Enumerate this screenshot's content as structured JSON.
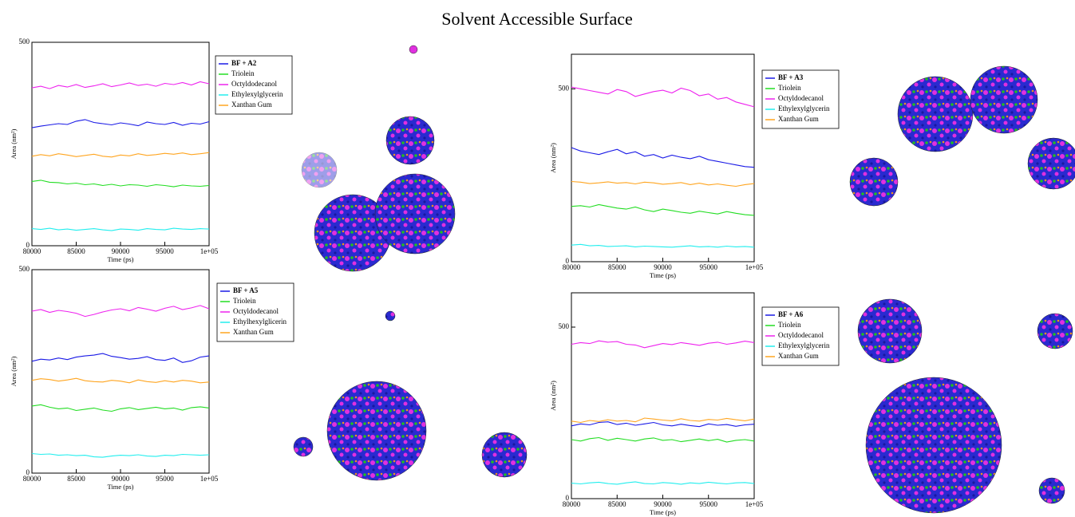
{
  "title": "Solvent Accessible Surface",
  "chart_data": [
    {
      "type": "line",
      "xlabel": "Time (ps)",
      "ylabel": "Area (nm²)",
      "x": [
        80000,
        81000,
        82000,
        83000,
        84000,
        85000,
        86000,
        87000,
        88000,
        89000,
        90000,
        91000,
        92000,
        93000,
        94000,
        95000,
        96000,
        97000,
        98000,
        99000,
        100000
      ],
      "xlim": [
        80000,
        100000
      ],
      "xticks": [
        80000,
        85000,
        90000,
        95000,
        {
          "value": 100000,
          "label": "1e+05"
        }
      ],
      "ylim": [
        0,
        500
      ],
      "yticks": [
        0,
        500
      ],
      "series": [
        {
          "name": "BF + A2",
          "color": "#1a1ae6",
          "values": [
            290,
            294,
            297,
            300,
            298,
            306,
            310,
            303,
            300,
            297,
            302,
            299,
            295,
            304,
            300,
            298,
            303,
            296,
            301,
            299,
            305
          ]
        },
        {
          "name": "Triolein",
          "color": "#22dd22",
          "values": [
            158,
            161,
            156,
            155,
            152,
            154,
            150,
            152,
            148,
            151,
            147,
            150,
            149,
            146,
            150,
            148,
            145,
            149,
            147,
            146,
            148
          ]
        },
        {
          "name": "Octyldodecanol",
          "color": "#ee22ee",
          "values": [
            388,
            392,
            386,
            394,
            390,
            396,
            389,
            393,
            398,
            391,
            395,
            400,
            394,
            397,
            392,
            399,
            396,
            401,
            395,
            403,
            398
          ]
        },
        {
          "name": "Ethylexylglycerin",
          "color": "#22eeee",
          "values": [
            42,
            40,
            43,
            39,
            41,
            38,
            40,
            42,
            39,
            37,
            41,
            40,
            38,
            42,
            40,
            39,
            43,
            41,
            40,
            42,
            41
          ]
        },
        {
          "name": "Xanthan Gum",
          "color": "#ffa520",
          "values": [
            220,
            224,
            221,
            226,
            223,
            219,
            222,
            225,
            220,
            218,
            223,
            221,
            226,
            222,
            224,
            227,
            225,
            228,
            224,
            226,
            229
          ]
        }
      ]
    },
    {
      "type": "line",
      "xlabel": "Time (ps)",
      "ylabel": "Area (nm²)",
      "x": [
        80000,
        81000,
        82000,
        83000,
        84000,
        85000,
        86000,
        87000,
        88000,
        89000,
        90000,
        91000,
        92000,
        93000,
        94000,
        95000,
        96000,
        97000,
        98000,
        99000,
        100000
      ],
      "xlim": [
        80000,
        100000
      ],
      "xticks": [
        80000,
        85000,
        90000,
        95000,
        {
          "value": 100000,
          "label": "1e+05"
        }
      ],
      "ylim": [
        0,
        500
      ],
      "yticks": [
        0,
        500
      ],
      "series": [
        {
          "name": "BF + A5",
          "color": "#1a1ae6",
          "values": [
            275,
            280,
            278,
            283,
            279,
            285,
            288,
            290,
            294,
            287,
            284,
            280,
            282,
            286,
            279,
            277,
            283,
            272,
            276,
            285,
            288
          ]
        },
        {
          "name": "Triolein",
          "color": "#22dd22",
          "values": [
            165,
            168,
            162,
            158,
            160,
            154,
            157,
            160,
            155,
            152,
            158,
            161,
            156,
            159,
            162,
            158,
            160,
            155,
            161,
            163,
            160
          ]
        },
        {
          "name": "Octyldodecanol",
          "color": "#ee22ee",
          "values": [
            398,
            402,
            395,
            400,
            397,
            393,
            385,
            390,
            396,
            401,
            404,
            399,
            407,
            403,
            398,
            405,
            410,
            402,
            406,
            412,
            404
          ]
        },
        {
          "name": "Ethylhexylglicerin",
          "color": "#22eeee",
          "values": [
            48,
            46,
            47,
            44,
            45,
            43,
            44,
            40,
            39,
            42,
            44,
            43,
            45,
            42,
            41,
            44,
            43,
            46,
            45,
            44,
            45
          ]
        },
        {
          "name": "Xanthan Gum",
          "color": "#ffa520",
          "values": [
            228,
            232,
            230,
            226,
            229,
            233,
            227,
            225,
            224,
            228,
            226,
            222,
            229,
            225,
            223,
            227,
            224,
            228,
            226,
            222,
            224
          ]
        }
      ]
    },
    {
      "type": "line",
      "xlabel": "Time (ps)",
      "ylabel": "Area (nm²)",
      "x": [
        80000,
        81000,
        82000,
        83000,
        84000,
        85000,
        86000,
        87000,
        88000,
        89000,
        90000,
        91000,
        92000,
        93000,
        94000,
        95000,
        96000,
        97000,
        98000,
        99000,
        100000
      ],
      "xlim": [
        80000,
        100000
      ],
      "xticks": [
        80000,
        85000,
        90000,
        95000,
        {
          "value": 100000,
          "label": "1e+05"
        }
      ],
      "ylim": [
        0,
        600
      ],
      "yticks": [
        0,
        500
      ],
      "series": [
        {
          "name": "BF + A3",
          "color": "#1a1ae6",
          "values": [
            330,
            320,
            315,
            310,
            318,
            325,
            312,
            318,
            305,
            310,
            300,
            308,
            302,
            298,
            305,
            295,
            290,
            285,
            280,
            275,
            273
          ]
        },
        {
          "name": "Triolein",
          "color": "#22dd22",
          "values": [
            160,
            162,
            158,
            165,
            160,
            155,
            152,
            158,
            150,
            145,
            152,
            148,
            143,
            140,
            146,
            142,
            138,
            145,
            140,
            136,
            134
          ]
        },
        {
          "name": "Octyldodecanol",
          "color": "#ee22ee",
          "values": [
            505,
            500,
            495,
            490,
            485,
            498,
            492,
            478,
            485,
            492,
            496,
            488,
            502,
            495,
            480,
            485,
            470,
            475,
            462,
            455,
            448
          ]
        },
        {
          "name": "Ethylexylglycerin",
          "color": "#22eeee",
          "values": [
            48,
            50,
            46,
            47,
            44,
            45,
            46,
            43,
            45,
            44,
            43,
            42,
            44,
            46,
            43,
            44,
            42,
            45,
            43,
            44,
            42
          ]
        },
        {
          "name": "Xanthan Gum",
          "color": "#ffa520",
          "values": [
            232,
            230,
            226,
            228,
            231,
            227,
            229,
            225,
            230,
            228,
            224,
            226,
            229,
            223,
            227,
            222,
            225,
            221,
            218,
            223,
            226
          ]
        }
      ]
    },
    {
      "type": "line",
      "xlabel": "Time (ps)",
      "ylabel": "Area (nm²)",
      "x": [
        80000,
        81000,
        82000,
        83000,
        84000,
        85000,
        86000,
        87000,
        88000,
        89000,
        90000,
        91000,
        92000,
        93000,
        94000,
        95000,
        96000,
        97000,
        98000,
        99000,
        100000
      ],
      "xlim": [
        80000,
        100000
      ],
      "xticks": [
        80000,
        85000,
        90000,
        95000,
        {
          "value": 100000,
          "label": "1e+05"
        }
      ],
      "ylim": [
        0,
        600
      ],
      "yticks": [
        0,
        500
      ],
      "series": [
        {
          "name": "BF + A6",
          "color": "#1a1ae6",
          "values": [
            212,
            218,
            215,
            222,
            224,
            216,
            220,
            214,
            218,
            222,
            215,
            212,
            217,
            213,
            210,
            218,
            214,
            216,
            211,
            215,
            217
          ]
        },
        {
          "name": "Triolein",
          "color": "#22dd22",
          "values": [
            172,
            168,
            175,
            178,
            170,
            176,
            172,
            168,
            174,
            177,
            170,
            172,
            166,
            170,
            174,
            169,
            173,
            165,
            170,
            172,
            168
          ]
        },
        {
          "name": "Octyldodecanol",
          "color": "#ee22ee",
          "values": [
            450,
            455,
            452,
            460,
            456,
            458,
            450,
            448,
            440,
            446,
            452,
            449,
            455,
            451,
            447,
            453,
            456,
            450,
            454,
            459,
            455
          ]
        },
        {
          "name": "Ethylexylglycerin",
          "color": "#22eeee",
          "values": [
            45,
            43,
            46,
            48,
            44,
            42,
            46,
            49,
            44,
            43,
            47,
            45,
            42,
            46,
            44,
            48,
            45,
            43,
            46,
            47,
            44
          ]
        },
        {
          "name": "Xanthan Gum",
          "color": "#ffa520",
          "values": [
            226,
            222,
            228,
            225,
            230,
            226,
            228,
            224,
            235,
            232,
            229,
            227,
            233,
            228,
            226,
            231,
            229,
            234,
            230,
            227,
            232
          ]
        }
      ]
    }
  ]
}
